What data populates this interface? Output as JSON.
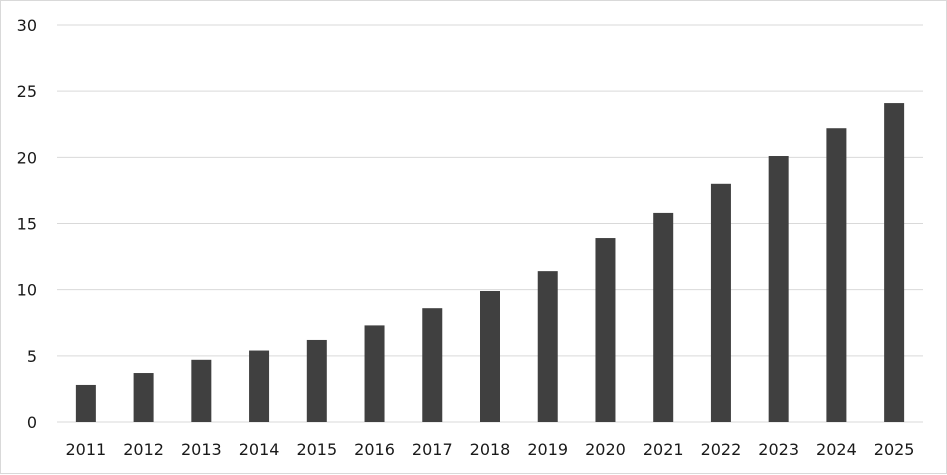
{
  "chart_data": {
    "type": "bar",
    "title": "",
    "xlabel": "",
    "ylabel": "",
    "categories": [
      "2011",
      "2012",
      "2013",
      "2014",
      "2015",
      "2016",
      "2017",
      "2018",
      "2019",
      "2020",
      "2021",
      "2022",
      "2023",
      "2024",
      "2025"
    ],
    "values": [
      2.8,
      3.7,
      4.7,
      5.4,
      6.2,
      7.3,
      8.6,
      9.9,
      11.4,
      13.9,
      15.8,
      18.0,
      20.1,
      22.2,
      24.1
    ],
    "ylim": [
      0,
      30
    ],
    "yticks": [
      0,
      5,
      10,
      15,
      20,
      25,
      30
    ],
    "grid": true,
    "legend": "none",
    "colors": {
      "bar": "#404040",
      "grid": "#d9d9d9",
      "text": "#1a1a1a",
      "border": "#d9d9d9"
    }
  }
}
